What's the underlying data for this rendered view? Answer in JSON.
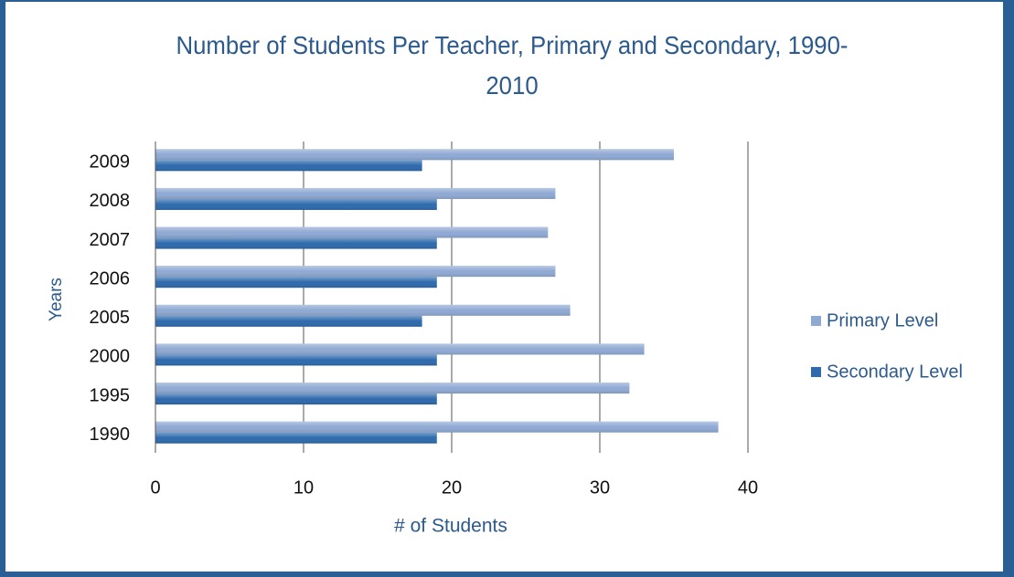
{
  "chart_data": {
    "type": "bar",
    "orientation": "horizontal",
    "title": "Number of Students Per Teacher, Primary and Secondary, 1990-2010",
    "x_label": "# of Students",
    "y_label": "Years",
    "categories": [
      "1990",
      "1995",
      "2000",
      "2005",
      "2006",
      "2007",
      "2008",
      "2009"
    ],
    "series": [
      {
        "name": "Primary Level",
        "color": "#8fa9d3",
        "values": [
          38,
          32,
          33,
          28,
          27,
          26.5,
          27,
          35
        ]
      },
      {
        "name": "Secondary Level",
        "color": "#2e6aad",
        "values": [
          19,
          19,
          19,
          18,
          19,
          19,
          19,
          18
        ]
      }
    ],
    "xlim": [
      0,
      40
    ],
    "xticks": [
      0,
      10,
      20,
      30,
      40
    ],
    "grid": true,
    "legend": "right"
  }
}
